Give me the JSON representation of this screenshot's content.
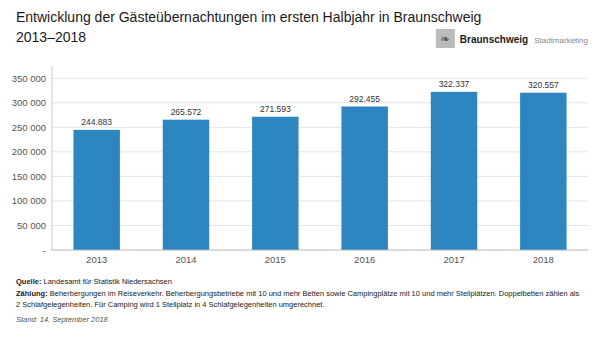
{
  "chart_data": {
    "type": "bar",
    "title": "Entwicklung der Gästeübernachtungen im ersten Halbjahr in Braunschweig",
    "subtitle": "2013–2018",
    "categories": [
      "2013",
      "2014",
      "2015",
      "2016",
      "2017",
      "2018"
    ],
    "values": [
      244883,
      265572,
      271593,
      292455,
      322337,
      320557
    ],
    "value_labels": [
      "244.883",
      "265.572",
      "271.593",
      "292.455",
      "322.337",
      "320.557"
    ],
    "data_labels": true,
    "color": "#2E86C1",
    "ylim": [
      0,
      375000
    ],
    "yticks": [
      {
        "value": 0,
        "label": "-"
      },
      {
        "value": 50000,
        "label": "50 000"
      },
      {
        "value": 100000,
        "label": "100 000"
      },
      {
        "value": 150000,
        "label": "150 000"
      },
      {
        "value": 200000,
        "label": "200 000"
      },
      {
        "value": 250000,
        "label": "250 000"
      },
      {
        "value": 300000,
        "label": "300 000"
      },
      {
        "value": 350000,
        "label": "350 000"
      }
    ],
    "grid": true,
    "annotations": [
      "❧",
      "Braunschweig",
      "Stadtmarketing",
      "Quelle:",
      "Landesamt für Statistik Niedersachsen",
      "Zählung:",
      "Beherbergungen im Reiseverkehr. Beherbergungsbetriebe mit 10 und mehr Betten sowie Campingplätze mit 10 und mehr Stellplätzen. Doppelbetten zählen als",
      "2 Schlafgelegenheiten. Für Camping wird 1 Stellplatz in 4 Schlafgelegenheiten umgerechnet.",
      "Stand: 14. September 2018"
    ]
  }
}
